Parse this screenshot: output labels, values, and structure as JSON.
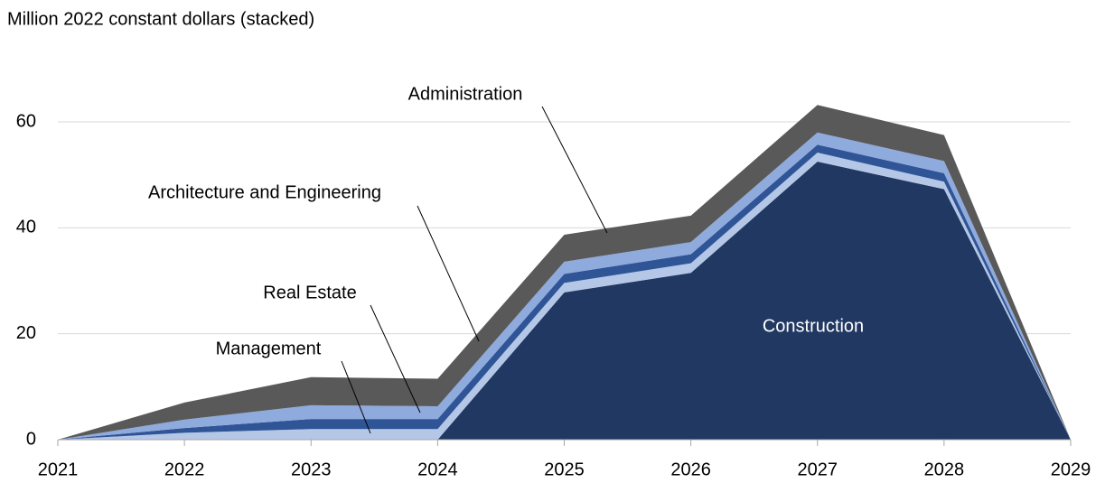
{
  "chart_data": {
    "type": "area",
    "stacked": true,
    "y_label": "Million 2022 constant dollars (stacked)",
    "categories": [
      "2021",
      "2022",
      "2023",
      "2024",
      "2025",
      "2026",
      "2027",
      "2028",
      "2029"
    ],
    "series": [
      {
        "name": "Construction",
        "color": "#213862",
        "values": [
          0,
          0,
          0,
          0,
          27.8,
          31.5,
          52.5,
          47.3,
          0
        ]
      },
      {
        "name": "Management",
        "color": "#b4c7e7",
        "values": [
          0,
          1.3,
          2,
          2,
          1.8,
          1.8,
          1.7,
          1.4,
          0
        ]
      },
      {
        "name": "Real Estate",
        "color": "#2f5597",
        "values": [
          0,
          0.9,
          1.9,
          1.9,
          1.7,
          1.7,
          1.5,
          1.6,
          0
        ]
      },
      {
        "name": "Architecture and Engineering",
        "color": "#8faadc",
        "values": [
          0,
          1.6,
          2.6,
          2.4,
          2.3,
          2.3,
          2.3,
          2.3,
          0
        ]
      },
      {
        "name": "Administration",
        "color": "#595959",
        "values": [
          0,
          3.2,
          5.3,
          5.2,
          5.1,
          5,
          5.2,
          4.9,
          0
        ]
      }
    ],
    "ylim": [
      0,
      70
    ],
    "yticks": [
      0,
      20,
      40,
      60
    ],
    "grid": true
  }
}
